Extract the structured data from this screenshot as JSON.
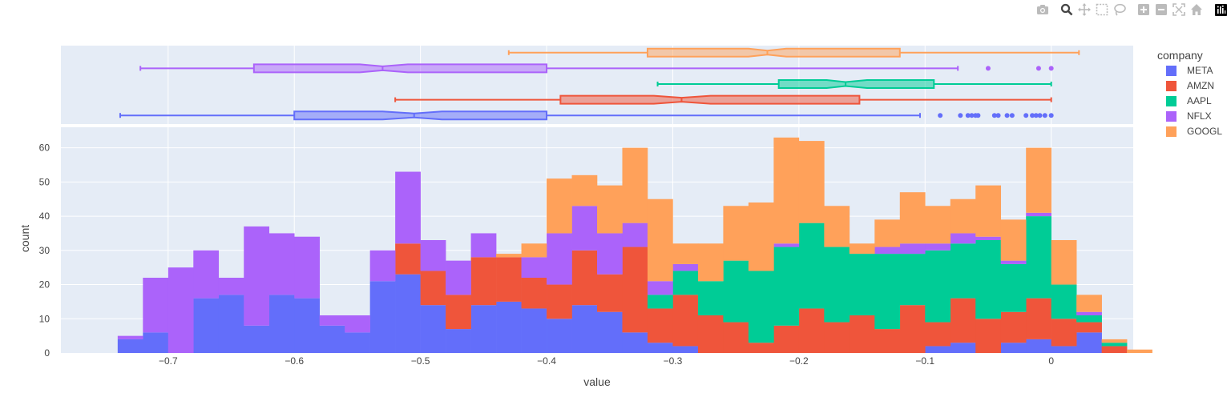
{
  "modebar": {
    "buttons": [
      {
        "name": "camera-icon"
      },
      {
        "name": "zoom-icon"
      },
      {
        "name": "pan-icon"
      },
      {
        "name": "box-select-icon"
      },
      {
        "name": "lasso-select-icon"
      },
      {
        "name": "zoom-in-icon"
      },
      {
        "name": "zoom-out-icon"
      },
      {
        "name": "autoscale-icon"
      },
      {
        "name": "reset-axes-icon"
      },
      {
        "name": "plotly-logo-icon"
      }
    ]
  },
  "chart_data": {
    "type": "histogram",
    "barmode": "stack",
    "xlabel": "value",
    "ylabel": "count",
    "xlim": [
      -0.785,
      0.065
    ],
    "ylim": [
      0,
      66
    ],
    "x_ticks": [
      {
        "v": -0.7,
        "label": "−0.7"
      },
      {
        "v": -0.6,
        "label": "−0.6"
      },
      {
        "v": -0.5,
        "label": "−0.5"
      },
      {
        "v": -0.4,
        "label": "−0.4"
      },
      {
        "v": -0.3,
        "label": "−0.3"
      },
      {
        "v": -0.2,
        "label": "−0.2"
      },
      {
        "v": -0.1,
        "label": "−0.1"
      },
      {
        "v": 0,
        "label": "0"
      }
    ],
    "y_ticks": [
      0,
      10,
      20,
      30,
      40,
      50,
      60
    ],
    "grid": true,
    "legend_title": "company",
    "legend_position": "right",
    "bin_start": -0.74,
    "bin_width": 0.02,
    "series": [
      {
        "name": "META",
        "color": "#636efa",
        "counts": [
          4,
          6,
          0,
          16,
          17,
          8,
          17,
          16,
          8,
          6,
          21,
          23,
          14,
          7,
          14,
          15,
          13,
          10,
          14,
          12,
          6,
          3,
          2,
          0,
          0,
          0,
          0,
          0,
          0,
          0,
          0,
          0,
          2,
          3,
          0,
          3,
          4,
          2,
          6,
          0,
          0
        ]
      },
      {
        "name": "AMZN",
        "color": "#ef553b",
        "counts": [
          0,
          0,
          0,
          0,
          0,
          0,
          0,
          0,
          0,
          0,
          0,
          9,
          10,
          10,
          14,
          13,
          9,
          10,
          16,
          11,
          25,
          10,
          15,
          11,
          9,
          3,
          8,
          13,
          9,
          11,
          7,
          14,
          7,
          13,
          10,
          9,
          12,
          8,
          3,
          2,
          0
        ]
      },
      {
        "name": "AAPL",
        "color": "#00cc96",
        "counts": [
          0,
          0,
          0,
          0,
          0,
          0,
          0,
          0,
          0,
          0,
          0,
          0,
          0,
          0,
          0,
          0,
          0,
          0,
          0,
          0,
          0,
          4,
          7,
          10,
          18,
          21,
          23,
          25,
          22,
          18,
          22,
          15,
          21,
          16,
          23,
          14,
          24,
          10,
          2,
          1,
          0
        ]
      },
      {
        "name": "NFLX",
        "color": "#ab63fa",
        "counts": [
          1,
          16,
          25,
          14,
          5,
          29,
          18,
          18,
          3,
          5,
          9,
          21,
          9,
          10,
          7,
          0,
          6,
          15,
          13,
          12,
          7,
          4,
          2,
          0,
          0,
          0,
          1,
          0,
          0,
          0,
          2,
          3,
          2,
          3,
          1,
          1,
          1,
          0,
          1,
          0,
          0
        ]
      },
      {
        "name": "GOOGL",
        "color": "#ffa15a",
        "counts": [
          0,
          0,
          0,
          0,
          0,
          0,
          0,
          0,
          0,
          0,
          0,
          0,
          0,
          0,
          0,
          1,
          4,
          16,
          9,
          14,
          22,
          24,
          6,
          11,
          16,
          20,
          31,
          24,
          12,
          3,
          8,
          15,
          11,
          10,
          15,
          12,
          19,
          13,
          5,
          1,
          1
        ]
      }
    ],
    "boxes": [
      {
        "name": "GOOGL",
        "color": "#ffa15a",
        "lower_fence": -0.43,
        "q1": -0.32,
        "notch_low": -0.24,
        "median": -0.225,
        "notch_high": -0.21,
        "q3": -0.12,
        "upper_fence": 0.022,
        "outliers": []
      },
      {
        "name": "NFLX",
        "color": "#ab63fa",
        "lower_fence": -0.722,
        "q1": -0.632,
        "notch_low": -0.548,
        "median": -0.53,
        "notch_high": -0.51,
        "q3": -0.4,
        "upper_fence": -0.074,
        "outliers": [
          -0.05,
          -0.01,
          0.0
        ]
      },
      {
        "name": "AAPL",
        "color": "#00cc96",
        "lower_fence": -0.312,
        "q1": -0.216,
        "notch_low": -0.178,
        "median": -0.163,
        "notch_high": -0.146,
        "q3": -0.093,
        "upper_fence": 0.0,
        "outliers": []
      },
      {
        "name": "AMZN",
        "color": "#ef553b",
        "lower_fence": -0.52,
        "q1": -0.389,
        "notch_low": -0.315,
        "median": -0.293,
        "notch_high": -0.27,
        "q3": -0.152,
        "upper_fence": 0.0,
        "outliers": []
      },
      {
        "name": "META",
        "color": "#636efa",
        "lower_fence": -0.738,
        "q1": -0.6,
        "notch_low": -0.53,
        "median": -0.505,
        "notch_high": -0.483,
        "q3": -0.4,
        "upper_fence": -0.104,
        "outliers": [
          -0.088,
          -0.072,
          -0.066,
          -0.063,
          -0.06,
          -0.058,
          -0.045,
          -0.042,
          -0.035,
          -0.031,
          -0.02,
          -0.015,
          -0.012,
          -0.009,
          -0.005,
          0.0
        ]
      }
    ]
  }
}
